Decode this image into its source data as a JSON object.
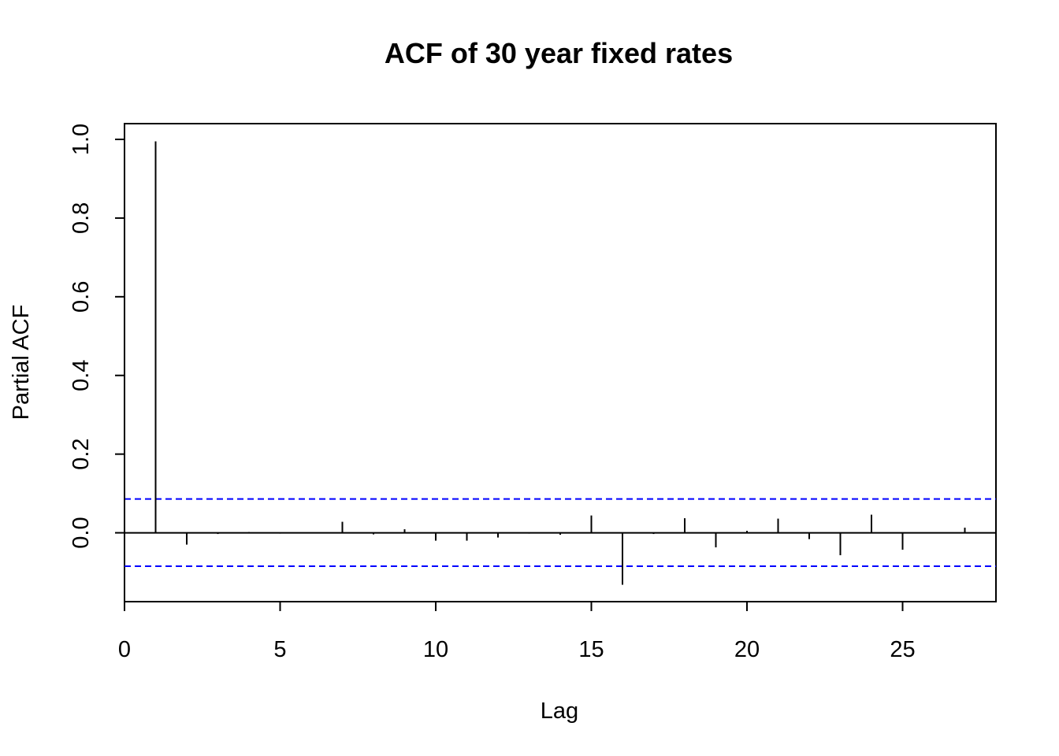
{
  "chart_data": {
    "type": "bar",
    "title": "ACF of 30 year fixed rates",
    "xlabel": "Lag",
    "ylabel": "Partial ACF",
    "xlim": [
      0,
      28
    ],
    "ylim": [
      -0.175,
      1.04
    ],
    "x_ticks": [
      0,
      5,
      10,
      15,
      20,
      25
    ],
    "y_ticks": [
      0.0,
      0.2,
      0.4,
      0.6,
      0.8,
      1.0
    ],
    "y_tick_labels": [
      "0.0",
      "0.2",
      "0.4",
      "0.6",
      "0.8",
      "1.0"
    ],
    "confidence_bounds": [
      0.086,
      -0.085
    ],
    "confidence_color": "#0000ff",
    "lags": [
      1,
      2,
      3,
      4,
      5,
      6,
      7,
      8,
      9,
      10,
      11,
      12,
      13,
      14,
      15,
      16,
      17,
      18,
      19,
      20,
      21,
      22,
      23,
      24,
      25,
      26,
      27
    ],
    "values": [
      0.995,
      -0.03,
      -0.003,
      0.002,
      -0.002,
      -0.001,
      0.028,
      -0.004,
      0.009,
      -0.02,
      -0.02,
      -0.012,
      -0.002,
      -0.005,
      0.044,
      -0.132,
      -0.003,
      0.037,
      -0.037,
      0.005,
      0.036,
      -0.016,
      -0.057,
      0.046,
      -0.043,
      -0.001,
      0.013
    ],
    "grid": false,
    "legend": "none"
  }
}
